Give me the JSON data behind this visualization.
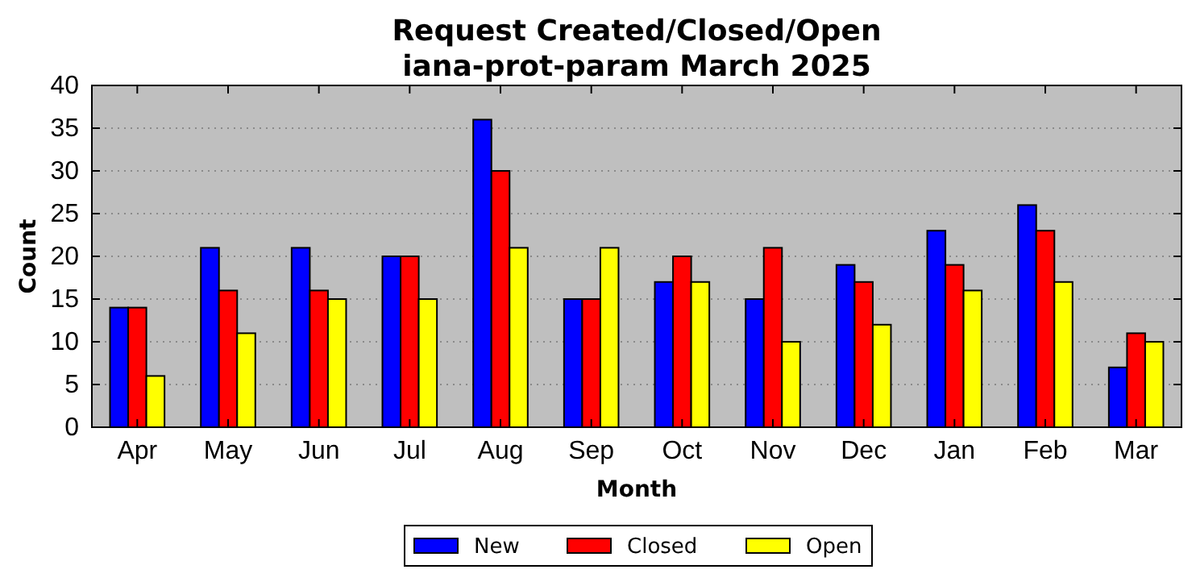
{
  "chart_data": {
    "type": "bar",
    "title": "Request Created/Closed/Open",
    "subtitle": "iana-prot-param March 2025",
    "xlabel": "Month",
    "ylabel": "Count",
    "categories": [
      "Apr",
      "May",
      "Jun",
      "Jul",
      "Aug",
      "Sep",
      "Oct",
      "Nov",
      "Dec",
      "Jan",
      "Feb",
      "Mar"
    ],
    "series": [
      {
        "name": "New",
        "color": "#0000ff",
        "values": [
          14,
          21,
          21,
          20,
          36,
          15,
          17,
          15,
          19,
          23,
          26,
          7
        ]
      },
      {
        "name": "Closed",
        "color": "#ff0000",
        "values": [
          14,
          16,
          16,
          20,
          30,
          15,
          20,
          21,
          17,
          19,
          23,
          11
        ]
      },
      {
        "name": "Open",
        "color": "#ffff00",
        "values": [
          6,
          11,
          15,
          15,
          21,
          21,
          17,
          10,
          12,
          16,
          17,
          10
        ]
      }
    ],
    "ylim": [
      0,
      40
    ],
    "yticks": [
      0,
      5,
      10,
      15,
      20,
      25,
      30,
      35,
      40
    ],
    "grid": "y",
    "legend": "bottom"
  }
}
